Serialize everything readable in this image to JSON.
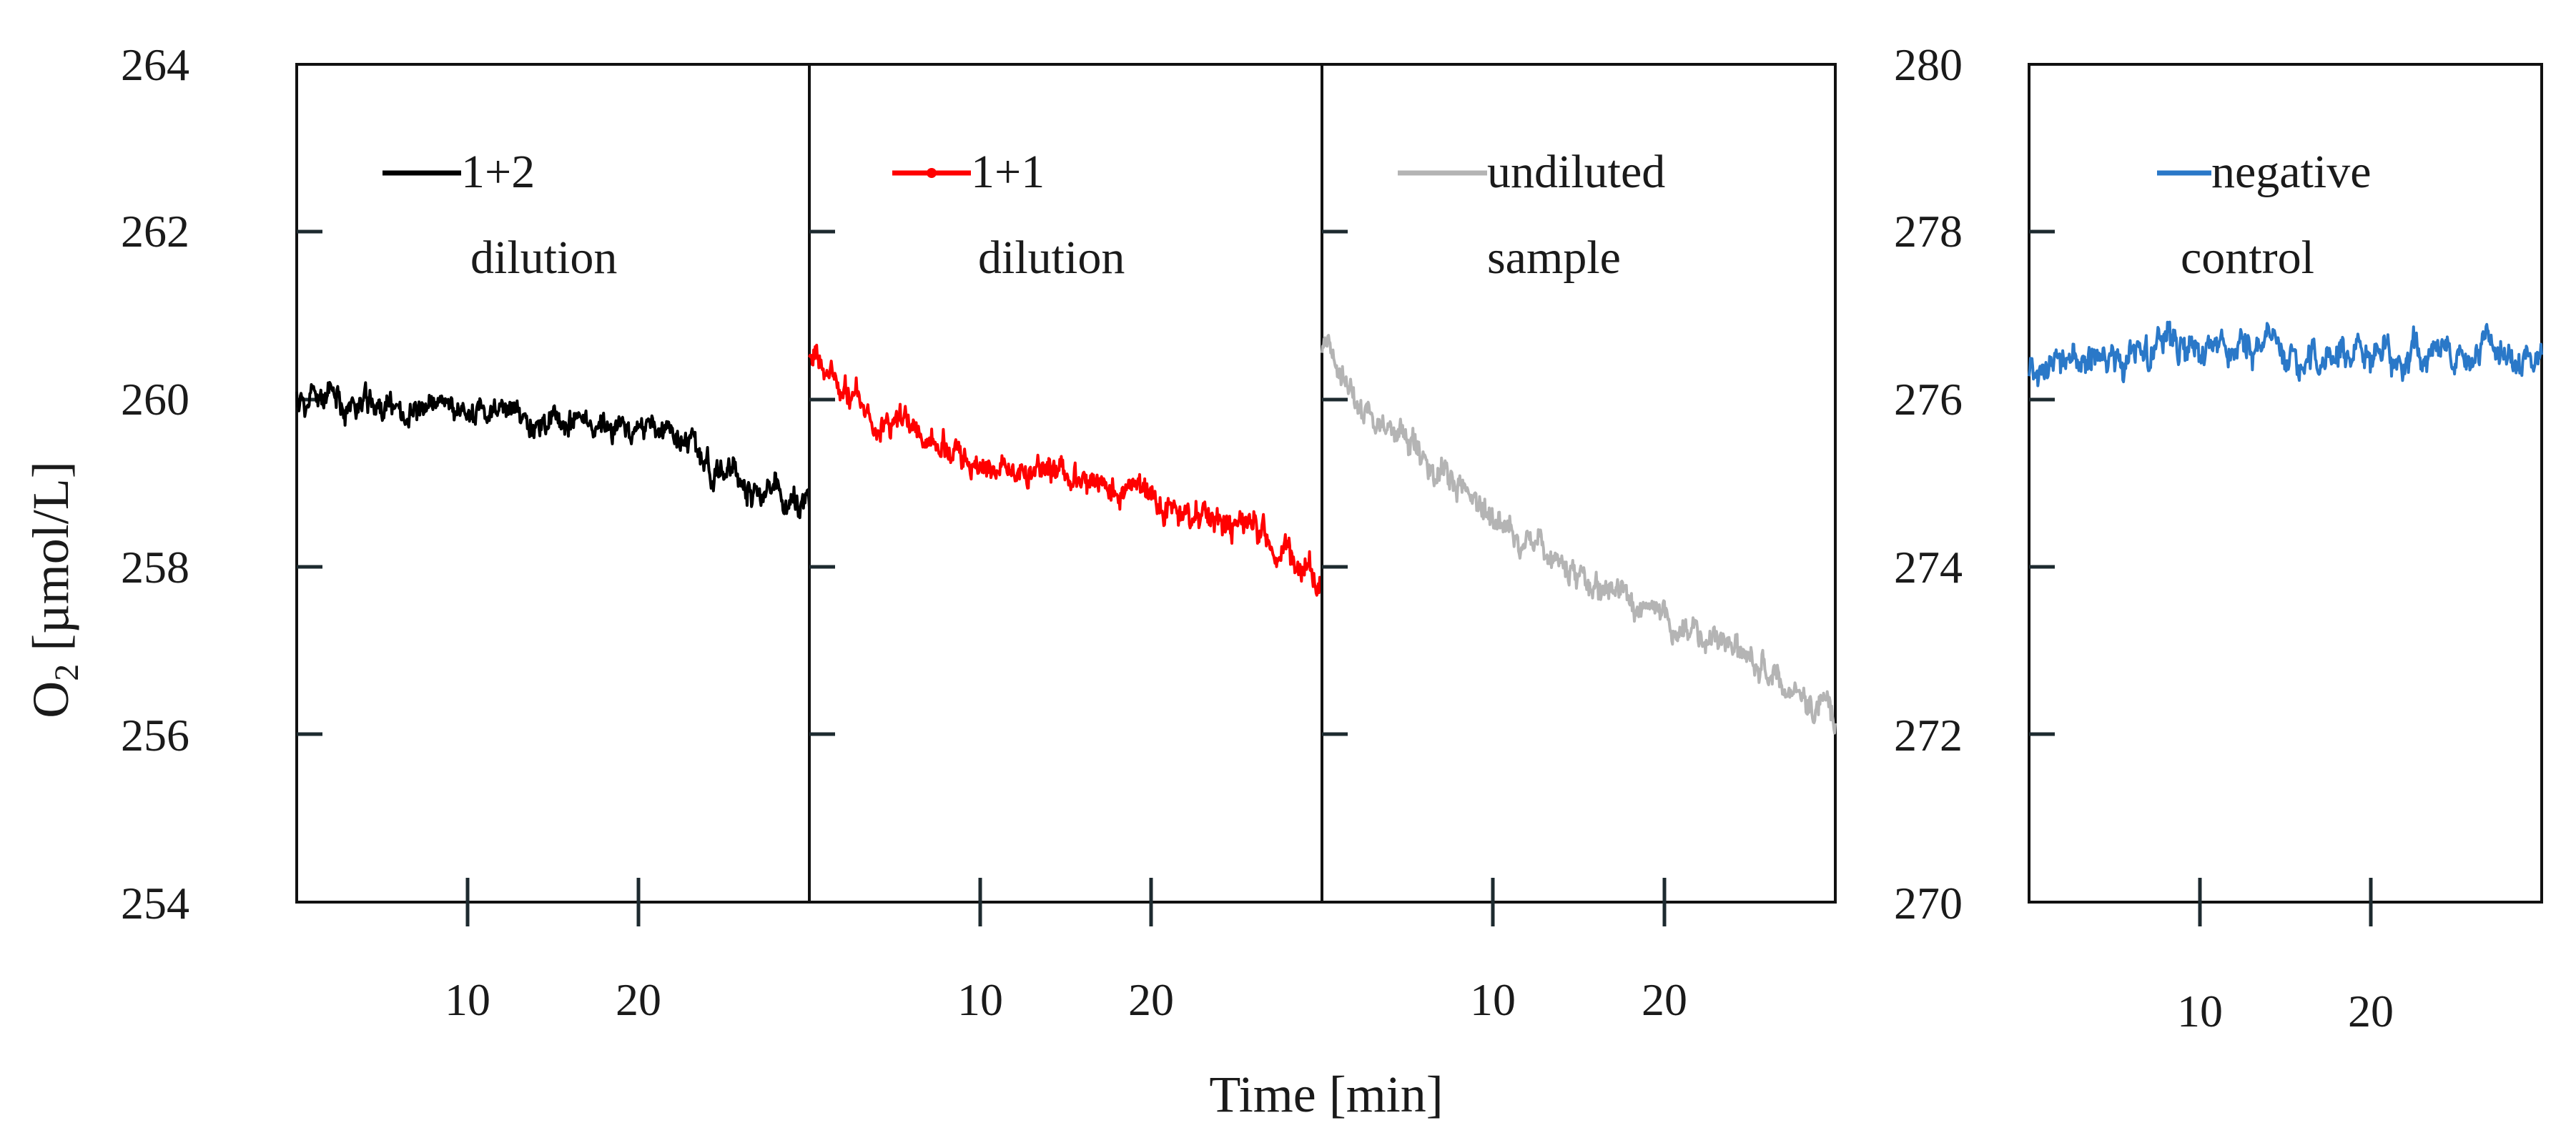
{
  "chart_data": [
    {
      "type": "line",
      "panel": "left-group",
      "ylabel": "O2 [µmol/L]",
      "ylabel_main": "O",
      "ylabel_sub": "2",
      "ylabel_rest": " [µmol/L]",
      "xlabel": "Time [min]",
      "ylim": [
        254,
        264
      ],
      "yticks": [
        "254",
        "256",
        "258",
        "260",
        "262",
        "264"
      ],
      "sub_panels": [
        {
          "xlim": [
            0,
            30
          ],
          "xticks": [
            "10",
            "20"
          ],
          "legend": [
            "1+2",
            "dilution"
          ],
          "color": "#000000",
          "series": {
            "name": "1+2 dilution",
            "x": [
              0,
              3,
              6,
              9,
              12,
              15,
              18,
              21,
              23,
              24,
              26,
              28,
              30
            ],
            "y": [
              260.0,
              259.95,
              259.9,
              259.85,
              259.8,
              259.75,
              259.7,
              259.6,
              259.5,
              259.2,
              259.0,
              258.85,
              258.75
            ],
            "noise": 0.18
          }
        },
        {
          "xlim": [
            0,
            30
          ],
          "xticks": [
            "10",
            "20"
          ],
          "legend": [
            "1+1",
            "dilution"
          ],
          "color": "#ff0000",
          "series": {
            "name": "1+1 dilution",
            "x": [
              0,
              2,
              5,
              8,
              10,
              13,
              16,
              19,
              22,
              25,
              27,
              29,
              30
            ],
            "y": [
              260.5,
              260.1,
              259.7,
              259.4,
              259.25,
              259.15,
              259.0,
              258.85,
              258.7,
              258.55,
              258.35,
              257.9,
              257.75
            ],
            "noise": 0.18
          }
        },
        {
          "xlim": [
            0,
            30
          ],
          "xticks": [
            "10",
            "20"
          ],
          "legend": [
            "undiluted",
            "sample"
          ],
          "color": "#b4b4b4",
          "series": {
            "name": "undiluted sample",
            "x": [
              0,
              3,
              6,
              9,
              12,
              15,
              18,
              21,
              24,
              27,
              30
            ],
            "y": [
              260.5,
              259.8,
              259.3,
              258.8,
              258.3,
              257.9,
              257.6,
              257.3,
              256.95,
              256.5,
              256.05
            ],
            "noise": 0.18
          }
        }
      ]
    },
    {
      "type": "line",
      "panel": "right",
      "ylim": [
        270,
        280
      ],
      "yticks": [
        "270",
        "272",
        "274",
        "276",
        "278",
        "280"
      ],
      "xlim": [
        0,
        30
      ],
      "xticks": [
        "10",
        "20"
      ],
      "legend": [
        "negative",
        "control"
      ],
      "color": "#2a78c8",
      "series": {
        "name": "negative control",
        "x": [
          0,
          4,
          8,
          12,
          16,
          20,
          24,
          28,
          30
        ],
        "y": [
          276.4,
          276.5,
          276.55,
          276.6,
          276.55,
          276.5,
          276.5,
          276.5,
          276.55
        ],
        "noise": 0.2
      }
    }
  ]
}
